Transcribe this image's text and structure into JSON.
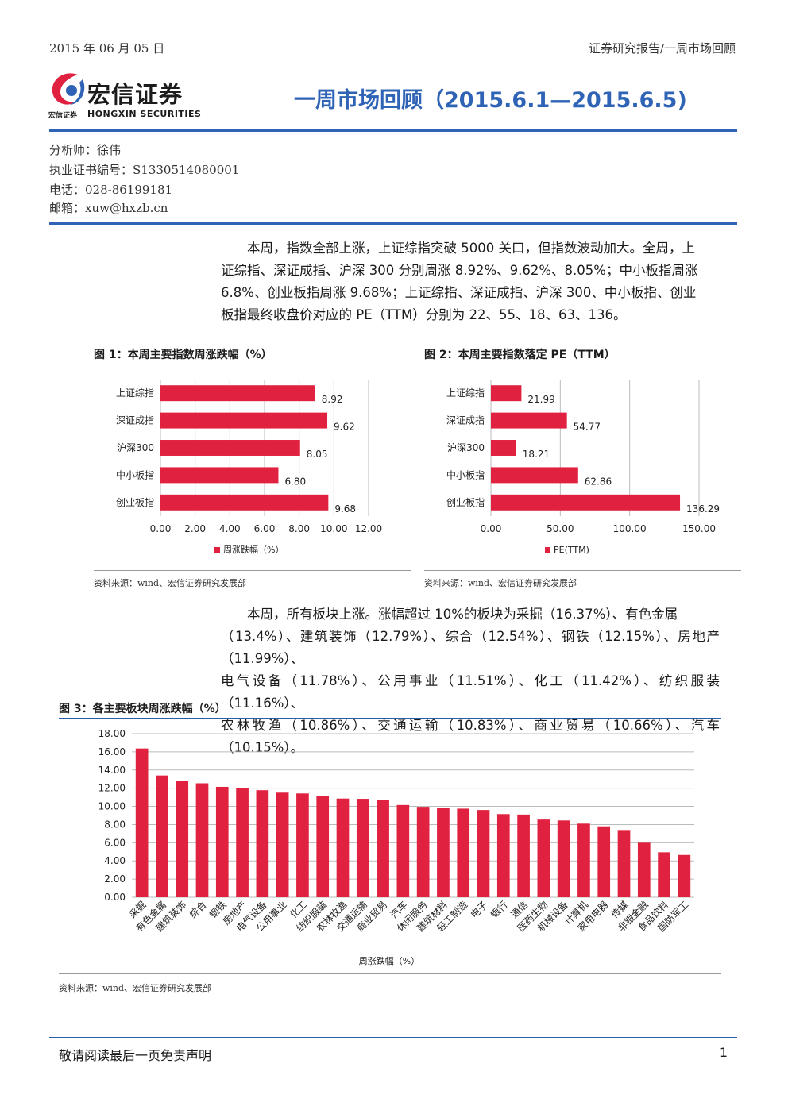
{
  "header": {
    "date": "2015 年 06 月 05 日",
    "breadcrumb": "证券研究报告/一周市场回顾",
    "logo_cn": "宏信证券",
    "logo_small": "宏信证券",
    "logo_en": "HONGXIN SECURITIES",
    "title": "一周市场回顾（2015.6.1—2015.6.5)"
  },
  "analyst": {
    "name": "分析师：徐伟",
    "cert": "执业证书编号：S1330514080001",
    "phone": "电话：028-86199181",
    "email": "邮箱：xuw@hxzb.cn"
  },
  "paragraphs": {
    "p1": [
      "本周，指数全部上涨，上证综指突破 5000 关口，但指数波动加大。全周，上",
      "证综指、深证成指、沪深 300 分别周涨 8.92%、9.62%、8.05%；中小板指周涨",
      "6.8%、创业板指周涨 9.68%；上证综指、深证成指、沪深 300、中小板指、创业",
      "板指最终收盘价对应的 PE（TTM）分别为 22、55、18、63、136。"
    ],
    "p2": [
      "本周，所有板块上涨。涨幅超过 10%的板块为采掘（16.37%）、有色金属",
      "（13.4%）、建筑装饰（12.79%）、综合（12.54%）、钢铁（12.15%）、房地产（11.99%）、",
      "电气设备（11.78%）、公用事业（11.51%）、化工（11.42%）、纺织服装（11.16%）、",
      "农林牧渔（10.86%）、交通运输（10.83%）、商业贸易（10.66%）、汽车（10.15%）。"
    ]
  },
  "figures": {
    "fig1_title": "图 1：本周主要指数周涨跌幅（%）",
    "fig2_title": "图 2：本周主要指数落定 PE（TTM）",
    "fig3_title": "图 3：各主要板块周涨跌幅（%）",
    "source1": "资料来源：wind、宏信证券研究发展部",
    "source2": "资料来源：wind、宏信证券研究发展部",
    "source3": "资料来源：wind、宏信证券研究发展部"
  },
  "chart_data": [
    {
      "type": "bar",
      "orientation": "horizontal",
      "categories": [
        "上证综指",
        "深证成指",
        "沪深300",
        "中小板指",
        "创业板指"
      ],
      "series": [
        {
          "name": "周涨跌幅（%）",
          "values": [
            8.92,
            9.62,
            8.05,
            6.8,
            9.68
          ]
        }
      ],
      "value_labels": [
        "8.92",
        "9.62",
        "8.05",
        "6.80",
        "9.68"
      ],
      "xlim": [
        0,
        12
      ],
      "ticks": [
        "0.00",
        "2.00",
        "4.00",
        "6.00",
        "8.00",
        "10.00",
        "12.00"
      ],
      "grid": true,
      "legend": "bottom",
      "color": "#e0213f"
    },
    {
      "type": "bar",
      "orientation": "horizontal",
      "categories": [
        "上证综指",
        "深证成指",
        "沪深300",
        "中小板指",
        "创业板指"
      ],
      "series": [
        {
          "name": "PE(TTM)",
          "values": [
            21.99,
            54.77,
            18.21,
            62.86,
            136.29
          ]
        }
      ],
      "value_labels": [
        "21.99",
        "54.77",
        "18.21",
        "62.86",
        "136.29"
      ],
      "xlim": [
        0,
        150
      ],
      "ticks": [
        "0.00",
        "50.00",
        "100.00",
        "150.00"
      ],
      "grid": true,
      "legend": "bottom",
      "color": "#e0213f"
    },
    {
      "type": "bar",
      "orientation": "vertical",
      "categories": [
        "采掘",
        "有色金属",
        "建筑装饰",
        "综合",
        "钢铁",
        "房地产",
        "电气设备",
        "公用事业",
        "化工",
        "纺织服装",
        "农林牧渔",
        "交通运输",
        "商业贸易",
        "汽车",
        "休闲服务",
        "建筑材料",
        "轻工制造",
        "电子",
        "银行",
        "通信",
        "医药生物",
        "机械设备",
        "计算机",
        "家用电器",
        "传媒",
        "非银金融",
        "食品饮料",
        "国防军工"
      ],
      "series": [
        {
          "name": "周涨跌幅（%）",
          "values": [
            16.37,
            13.4,
            12.79,
            12.54,
            12.15,
            11.99,
            11.78,
            11.51,
            11.42,
            11.16,
            10.86,
            10.83,
            10.66,
            10.15,
            9.95,
            9.8,
            9.75,
            9.6,
            9.15,
            9.1,
            8.55,
            8.45,
            8.1,
            7.8,
            7.4,
            6.0,
            4.95,
            4.65
          ]
        }
      ],
      "ylim": [
        0,
        18
      ],
      "ticks": [
        "0.00",
        "2.00",
        "4.00",
        "6.00",
        "8.00",
        "10.00",
        "12.00",
        "14.00",
        "16.00",
        "18.00"
      ],
      "grid": true,
      "xlabel": "周涨跌幅（%）",
      "color": "#e0213f"
    }
  ],
  "footer": {
    "disclaimer": "敬请阅读最后一页免责声明",
    "page": "1"
  }
}
